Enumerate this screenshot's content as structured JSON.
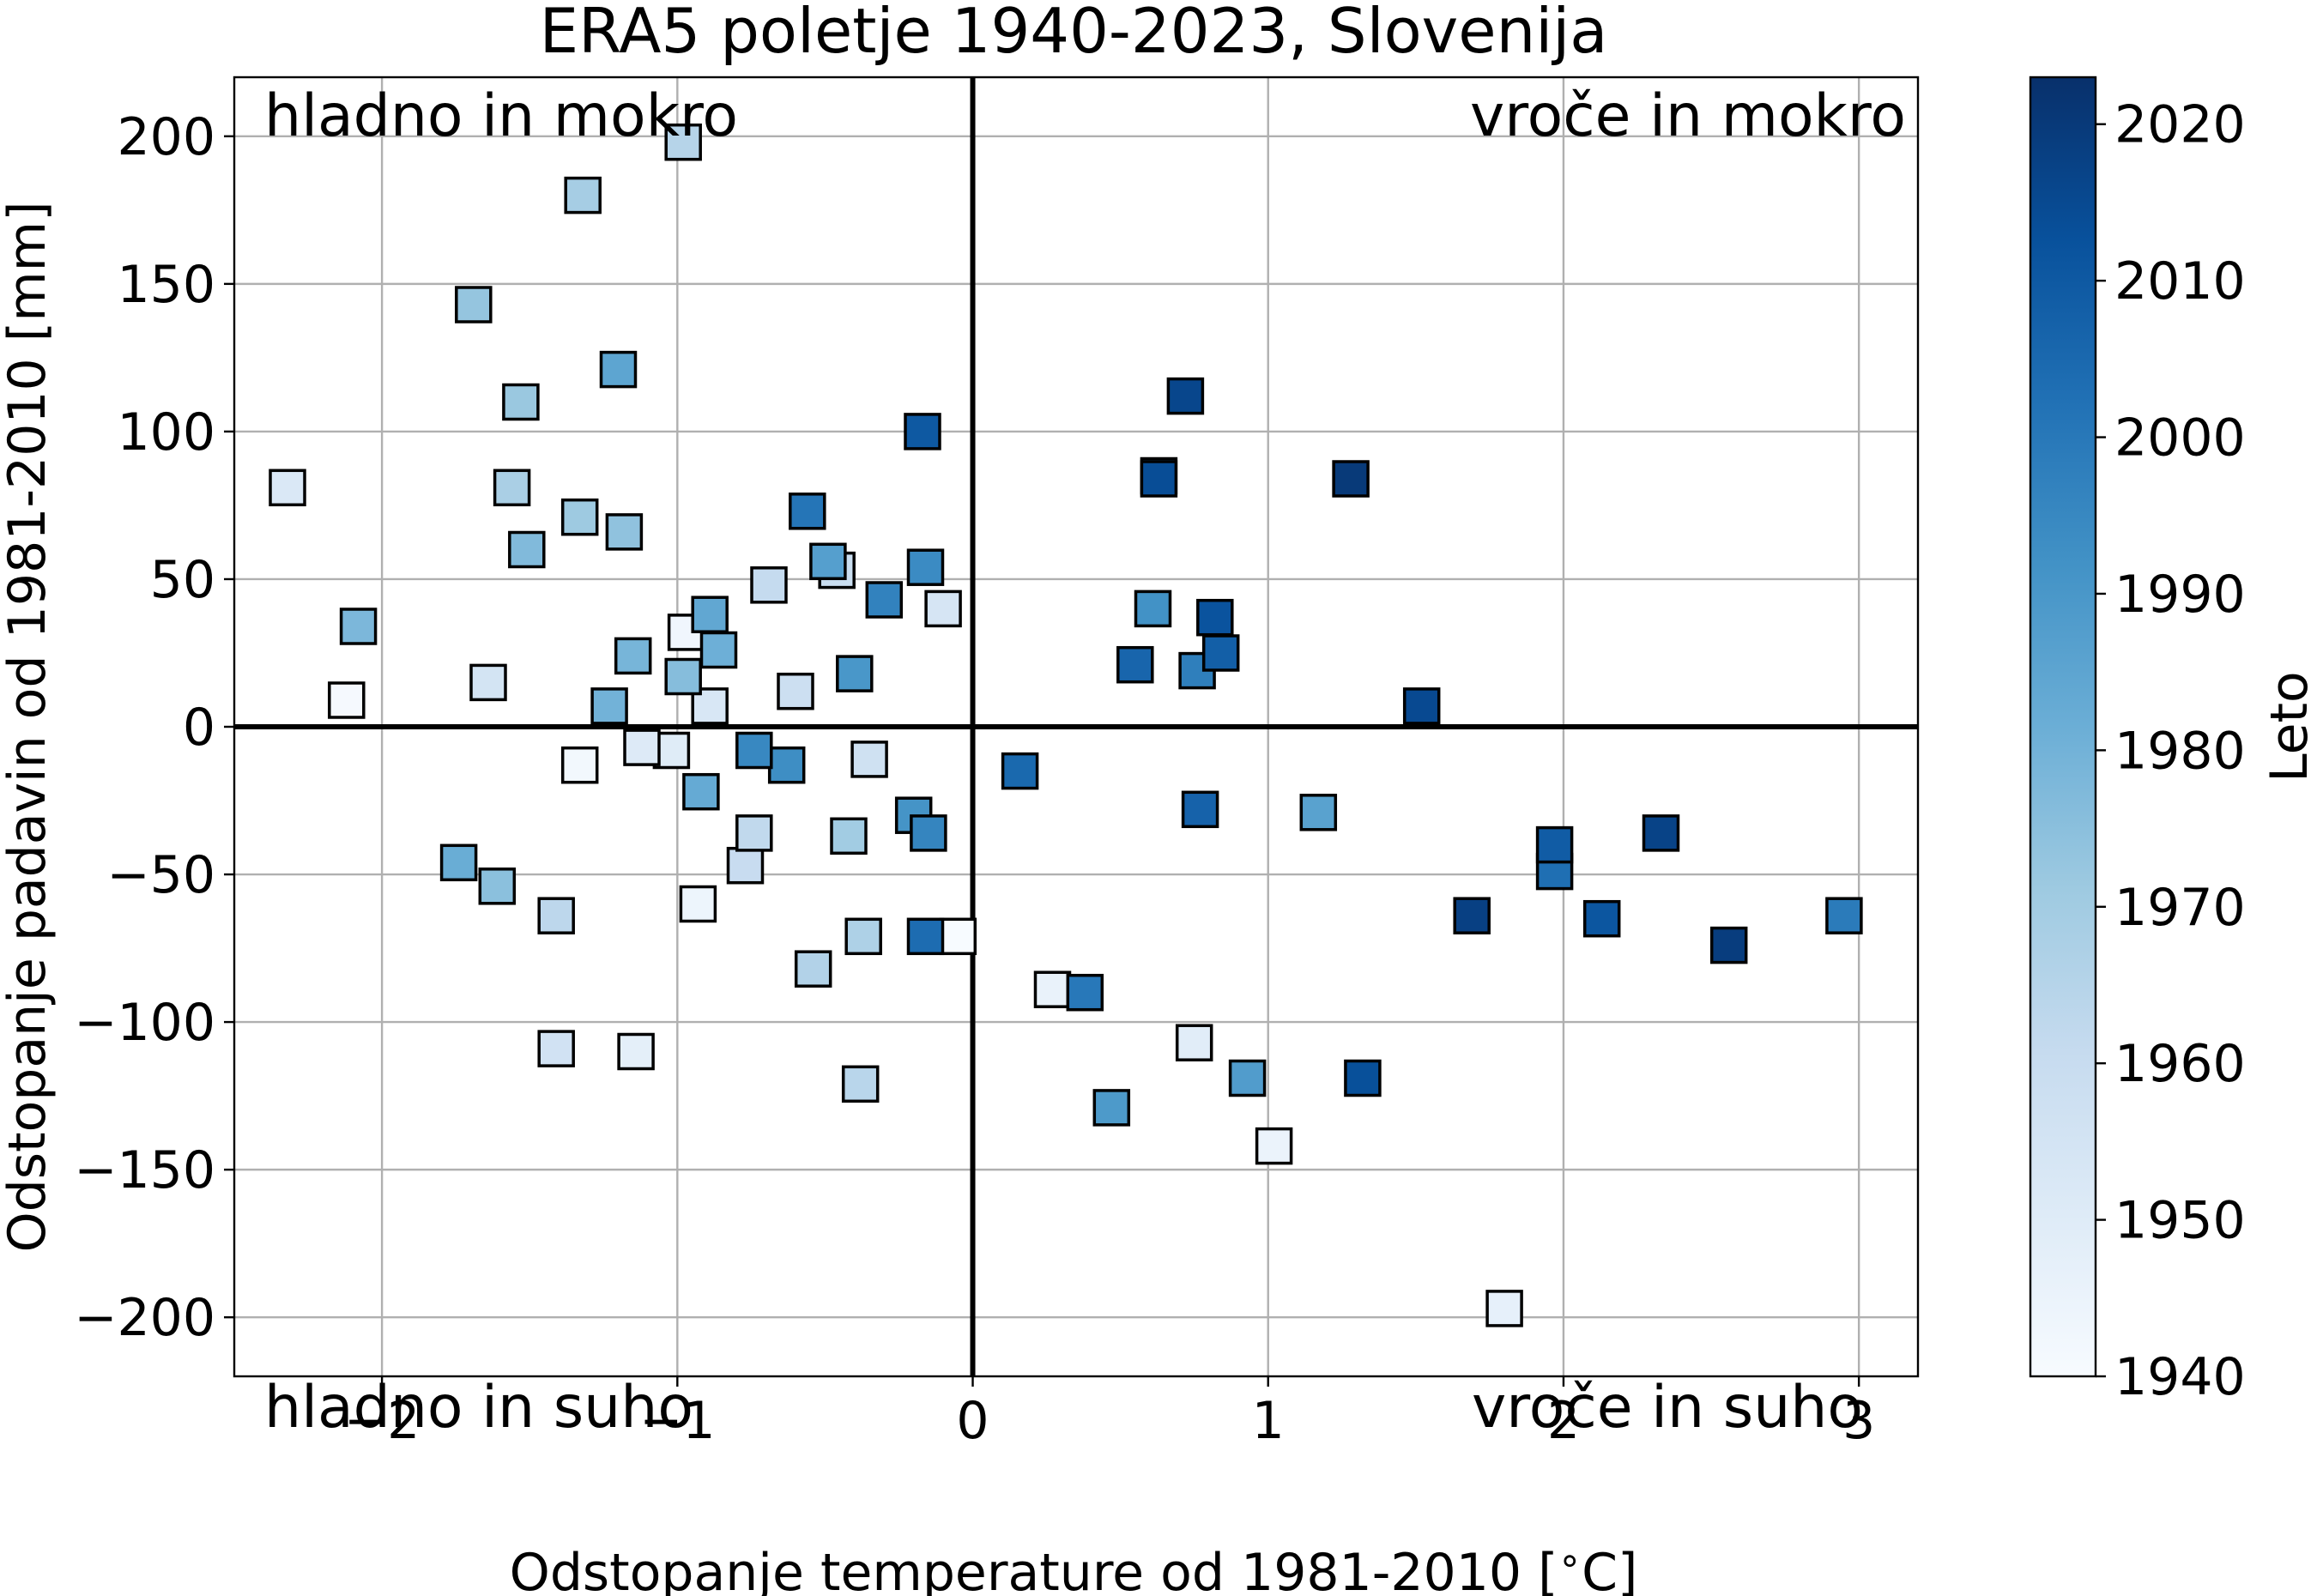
{
  "chart_data": {
    "type": "scatter",
    "title": "ERA5 poletje 1940-2023, Slovenija",
    "xlabel": "Odstopanje temperature od 1981-2010 [$^\\circ$C]",
    "xlabel_main": "Odstopanje temperature od 1981-2010 [",
    "xlabel_degree": "∘",
    "xlabel_unit": "C]",
    "ylabel": "Odstopanje padavin od 1981-2010 [mm]",
    "xlim": [
      -2.5,
      3.2
    ],
    "ylim": [
      -220,
      220
    ],
    "xticks": [
      -2,
      -1,
      0,
      1,
      2,
      3
    ],
    "xtick_labels": [
      "−2",
      "−1",
      "0",
      "1",
      "2",
      "3"
    ],
    "yticks": [
      -200,
      -150,
      -100,
      -50,
      0,
      50,
      100,
      150,
      200
    ],
    "ytick_labels": [
      "−200",
      "−150",
      "−100",
      "−50",
      "0",
      "50",
      "100",
      "150",
      "200"
    ],
    "grid": true,
    "marker": "square",
    "colormap": "Blues",
    "colormap_stops": [
      "#f7fbff",
      "#deebf7",
      "#c6dbef",
      "#9ecae1",
      "#6baed6",
      "#4292c6",
      "#2171b5",
      "#08519c",
      "#08306b"
    ],
    "colorbar": {
      "label": "Leto",
      "range": [
        1940,
        2023
      ],
      "ticks": [
        1940,
        1950,
        1960,
        1970,
        1980,
        1990,
        2000,
        2010,
        2020
      ],
      "tick_labels": [
        "1940",
        "1950",
        "1960",
        "1970",
        "1980",
        "1990",
        "2000",
        "2010",
        "2020"
      ]
    },
    "quadrant_labels": {
      "top_left": "hladno in mokro",
      "top_right": "vroče in mokro",
      "bottom_left": "hladno in suho",
      "bottom_right": "vroče in suho"
    },
    "points": [
      {
        "year": 1940,
        "x": -0.05,
        "y": -71
      },
      {
        "year": 1941,
        "x": -2.12,
        "y": 9
      },
      {
        "year": 1942,
        "x": -1.33,
        "y": -13
      },
      {
        "year": 1943,
        "x": -0.97,
        "y": 32
      },
      {
        "year": 1944,
        "x": -0.93,
        "y": -60
      },
      {
        "year": 1945,
        "x": 1.02,
        "y": -142
      },
      {
        "year": 1946,
        "x": 0.27,
        "y": -89
      },
      {
        "year": 1947,
        "x": 1.8,
        "y": -197
      },
      {
        "year": 1948,
        "x": -1.14,
        "y": -110
      },
      {
        "year": 1949,
        "x": 0.75,
        "y": -107
      },
      {
        "year": 1950,
        "x": -1.02,
        "y": -8
      },
      {
        "year": 1951,
        "x": -1.12,
        "y": -7
      },
      {
        "year": 1952,
        "x": -2.32,
        "y": 81
      },
      {
        "year": 1953,
        "x": -0.89,
        "y": 7
      },
      {
        "year": 1954,
        "x": -0.1,
        "y": 40
      },
      {
        "year": 1955,
        "x": -1.64,
        "y": 15
      },
      {
        "year": 1956,
        "x": -1.41,
        "y": -109
      },
      {
        "year": 1957,
        "x": -0.35,
        "y": -11
      },
      {
        "year": 1958,
        "x": -0.6,
        "y": 12
      },
      {
        "year": 1959,
        "x": -0.46,
        "y": 53
      },
      {
        "year": 1960,
        "x": -0.77,
        "y": -47
      },
      {
        "year": 1961,
        "x": -0.69,
        "y": 48
      },
      {
        "year": 1962,
        "x": -0.74,
        "y": -36
      },
      {
        "year": 1963,
        "x": -1.41,
        "y": -64
      },
      {
        "year": 1964,
        "x": -0.38,
        "y": -121
      },
      {
        "year": 1965,
        "x": -0.98,
        "y": 198
      },
      {
        "year": 1966,
        "x": -0.54,
        "y": -82
      },
      {
        "year": 1967,
        "x": -0.37,
        "y": -71
      },
      {
        "year": 1968,
        "x": -1.56,
        "y": 81
      },
      {
        "year": 1969,
        "x": -1.32,
        "y": 180
      },
      {
        "year": 1970,
        "x": -0.42,
        "y": -37
      },
      {
        "year": 1971,
        "x": -1.33,
        "y": 71
      },
      {
        "year": 1972,
        "x": -1.53,
        "y": 110
      },
      {
        "year": 1973,
        "x": -1.69,
        "y": 143
      },
      {
        "year": 1974,
        "x": -1.18,
        "y": 66
      },
      {
        "year": 1975,
        "x": -1.61,
        "y": -54
      },
      {
        "year": 1976,
        "x": -0.98,
        "y": 17
      },
      {
        "year": 1977,
        "x": -1.51,
        "y": 60
      },
      {
        "year": 1978,
        "x": -2.08,
        "y": 34
      },
      {
        "year": 1979,
        "x": -1.15,
        "y": 24
      },
      {
        "year": 1980,
        "x": -1.23,
        "y": 7
      },
      {
        "year": 1981,
        "x": -0.86,
        "y": 26
      },
      {
        "year": 1982,
        "x": -1.74,
        "y": -46
      },
      {
        "year": 1983,
        "x": -0.92,
        "y": -22
      },
      {
        "year": 1984,
        "x": -0.89,
        "y": 38
      },
      {
        "year": 1985,
        "x": -1.2,
        "y": 121
      },
      {
        "year": 1986,
        "x": 1.17,
        "y": -29
      },
      {
        "year": 1987,
        "x": -0.49,
        "y": 56
      },
      {
        "year": 1988,
        "x": 0.93,
        "y": -119
      },
      {
        "year": 1989,
        "x": 0.47,
        "y": -129
      },
      {
        "year": 1990,
        "x": -0.4,
        "y": 18
      },
      {
        "year": 1991,
        "x": -0.2,
        "y": -30
      },
      {
        "year": 1992,
        "x": 0.61,
        "y": 40
      },
      {
        "year": 1993,
        "x": -0.63,
        "y": -13
      },
      {
        "year": 1994,
        "x": -0.16,
        "y": 54
      },
      {
        "year": 1995,
        "x": -0.74,
        "y": -8
      },
      {
        "year": 1996,
        "x": -0.15,
        "y": -36
      },
      {
        "year": 1997,
        "x": -0.3,
        "y": 43
      },
      {
        "year": 1998,
        "x": 0.76,
        "y": 19
      },
      {
        "year": 1999,
        "x": 2.95,
        "y": -64
      },
      {
        "year": 2000,
        "x": 0.38,
        "y": -90
      },
      {
        "year": 2001,
        "x": -0.56,
        "y": 73
      },
      {
        "year": 2002,
        "x": 0.63,
        "y": 85
      },
      {
        "year": 2003,
        "x": 1.97,
        "y": -49
      },
      {
        "year": 2004,
        "x": -0.16,
        "y": -71
      },
      {
        "year": 2005,
        "x": 0.16,
        "y": -15
      },
      {
        "year": 2006,
        "x": 0.55,
        "y": 21
      },
      {
        "year": 2007,
        "x": 0.77,
        "y": -28
      },
      {
        "year": 2008,
        "x": 0.84,
        "y": 25
      },
      {
        "year": 2009,
        "x": 1.97,
        "y": -40
      },
      {
        "year": 2010,
        "x": -0.17,
        "y": 100
      },
      {
        "year": 2011,
        "x": 2.13,
        "y": -65
      },
      {
        "year": 2012,
        "x": 0.82,
        "y": 37
      },
      {
        "year": 2013,
        "x": 1.32,
        "y": -119
      },
      {
        "year": 2014,
        "x": 0.63,
        "y": 84
      },
      {
        "year": 2015,
        "x": 1.52,
        "y": 7
      },
      {
        "year": 2016,
        "x": 0.72,
        "y": 112
      },
      {
        "year": 2017,
        "x": 2.33,
        "y": -36
      },
      {
        "year": 2018,
        "x": 1.69,
        "y": -64
      },
      {
        "year": 2019,
        "x": 2.56,
        "y": -74
      },
      {
        "year": 2020,
        "x": 1.28,
        "y": 84
      }
    ]
  }
}
